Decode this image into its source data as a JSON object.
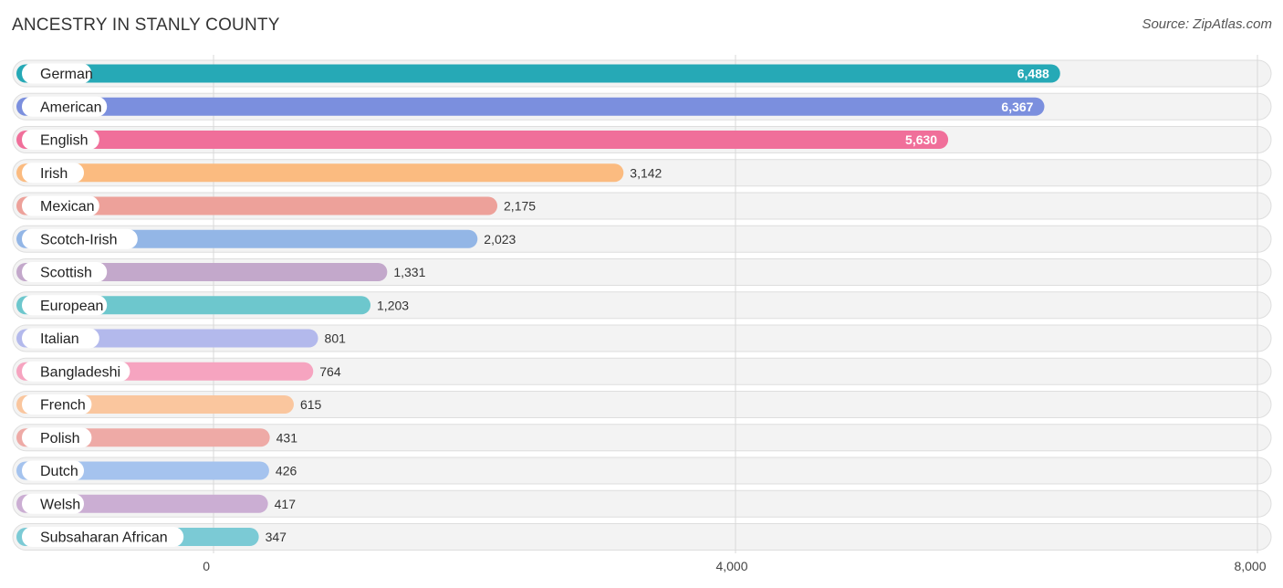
{
  "header": {
    "title": "ANCESTRY IN STANLY COUNTY",
    "source": "Source: ZipAtlas.com"
  },
  "chart_data": {
    "type": "bar",
    "orientation": "horizontal",
    "title": "ANCESTRY IN STANLY COUNTY",
    "xlabel": "",
    "ylabel": "",
    "xlim": [
      0,
      8000
    ],
    "ticks": [
      0,
      4000,
      8000
    ],
    "tick_labels": [
      "0",
      "4,000",
      "8,000"
    ],
    "grid": true,
    "categories": [
      "German",
      "American",
      "English",
      "Irish",
      "Mexican",
      "Scotch-Irish",
      "Scottish",
      "European",
      "Italian",
      "Bangladeshi",
      "French",
      "Polish",
      "Dutch",
      "Welsh",
      "Subsaharan African"
    ],
    "values": [
      6488,
      6367,
      5630,
      3142,
      2175,
      2023,
      1331,
      1203,
      801,
      764,
      615,
      431,
      426,
      417,
      347
    ],
    "value_labels": [
      "6,488",
      "6,367",
      "5,630",
      "3,142",
      "2,175",
      "2,023",
      "1,331",
      "1,203",
      "801",
      "764",
      "615",
      "431",
      "426",
      "417",
      "347"
    ],
    "colors": [
      "#26a9b6",
      "#7b8fde",
      "#f06f9a",
      "#fbbb80",
      "#eda19a",
      "#93b6e6",
      "#c3a8cb",
      "#6dc7cd",
      "#b3b9ec",
      "#f6a4c0",
      "#fac69e",
      "#eeaaa6",
      "#a5c3ee",
      "#cbaed3",
      "#7bcad5"
    ]
  }
}
